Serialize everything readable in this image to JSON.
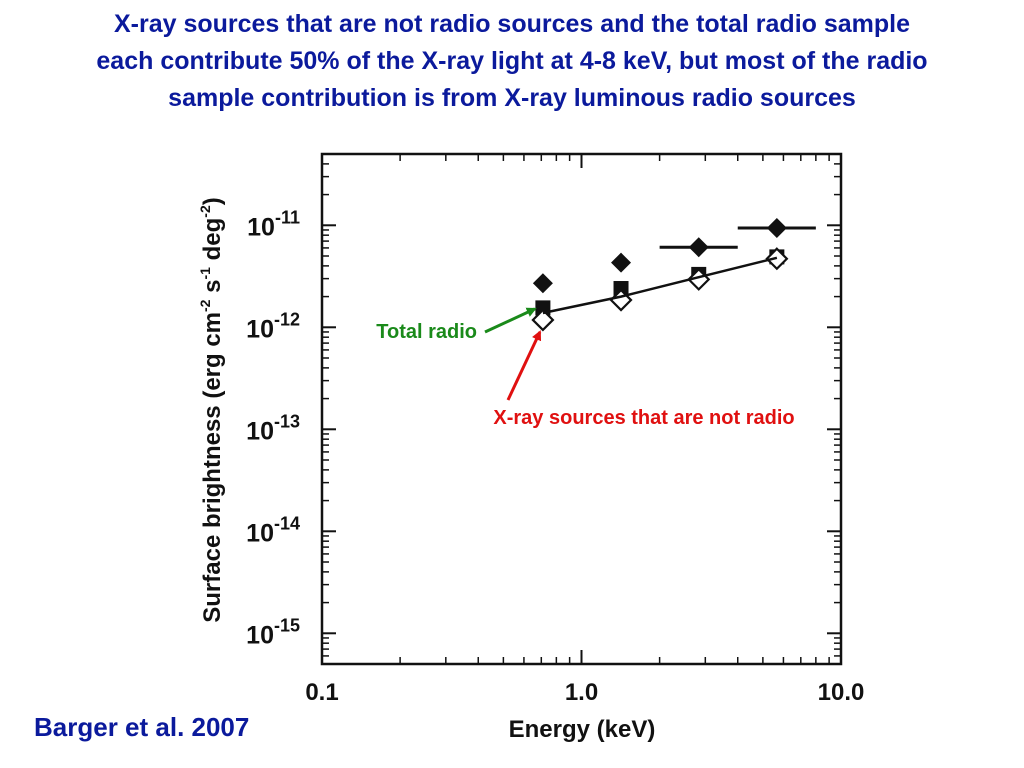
{
  "slide": {
    "title_lines": [
      "X-ray sources that are not radio sources and the total radio sample",
      "each contribute 50% of the X-ray light at 4-8 keV, but most of the radio",
      "sample contribution is from X-ray luminous radio sources"
    ],
    "citation": "Barger et al. 2007"
  },
  "chart_data": {
    "type": "scatter",
    "xlabel": "Energy (keV)",
    "ylabel": {
      "prefix": "Surface brightness (erg cm",
      "exp1": "-2",
      "mid1": " s",
      "exp2": "-1",
      "mid2": " deg",
      "exp3": "-2",
      "suffix": ")"
    },
    "x_scale": "log",
    "y_scale": "log",
    "xlim": [
      0.1,
      10.0
    ],
    "ylim": [
      5e-16,
      5e-11
    ],
    "x_ticks": [
      {
        "value": 0.1,
        "label": "0.1"
      },
      {
        "value": 1.0,
        "label": "1.0"
      },
      {
        "value": 10.0,
        "label": "10.0"
      }
    ],
    "y_ticks": [
      {
        "value": 1e-15,
        "base": "10",
        "exp": "-15"
      },
      {
        "value": 1e-14,
        "base": "10",
        "exp": "-14"
      },
      {
        "value": 1e-13,
        "base": "10",
        "exp": "-13"
      },
      {
        "value": 1e-12,
        "base": "10",
        "exp": "-12"
      },
      {
        "value": 1e-11,
        "base": "10",
        "exp": "-11"
      }
    ],
    "grid": false,
    "series": [
      {
        "marker": "filled-diamond",
        "x": [
          0.71,
          1.42,
          2.83,
          5.66
        ],
        "y": [
          2.7e-12,
          4.3e-12,
          6.1e-12,
          9.4e-12
        ],
        "x_err_low": [
          null,
          null,
          2.0,
          4.0
        ],
        "x_err_high": [
          null,
          null,
          4.0,
          8.0
        ]
      },
      {
        "marker": "filled-square",
        "x": [
          0.71,
          1.42,
          2.83,
          5.66
        ],
        "y": [
          1.55e-12,
          2.4e-12,
          3.3e-12,
          4.9e-12
        ]
      },
      {
        "marker": "open-diamond",
        "x": [
          0.71,
          1.42,
          2.83,
          5.66
        ],
        "y": [
          1.18e-12,
          1.85e-12,
          2.95e-12,
          4.7e-12
        ]
      },
      {
        "marker": "line",
        "x": [
          0.71,
          1.42,
          2.83,
          5.66
        ],
        "y": [
          1.38e-12,
          2e-12,
          3.1e-12,
          4.8e-12
        ]
      }
    ],
    "annotations": [
      {
        "text": "Total radio",
        "color": "#1a8a1a",
        "points_to": {
          "x": 0.71,
          "y": 1.55e-12
        }
      },
      {
        "text": "X-ray sources that are not radio",
        "color": "#e01010",
        "points_to": {
          "x": 0.71,
          "y": 1.18e-12
        }
      }
    ],
    "colors": {
      "axes": "#111111",
      "title": "#0b1a9c"
    }
  }
}
